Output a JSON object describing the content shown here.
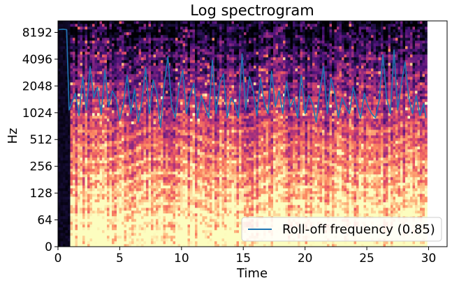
{
  "chart_data": {
    "type": "heatmap",
    "title": "Log spectrogram",
    "xlabel": "Time",
    "ylabel": "Hz",
    "xlim": [
      0,
      31.5
    ],
    "y_scale": "symlog",
    "y_range_hz": [
      0,
      11025
    ],
    "x_ticks": [
      0,
      5,
      10,
      15,
      20,
      25,
      30
    ],
    "x_tick_labels": [
      "0",
      "5",
      "10",
      "15",
      "20",
      "25",
      "30"
    ],
    "y_tick_labels": [
      "0",
      "64",
      "128",
      "256",
      "512",
      "1024",
      "2048",
      "4096",
      "8192"
    ],
    "data_end_time": 29.8,
    "colormap": "magma",
    "legend": {
      "placement": "lower-right",
      "entries": [
        {
          "label": "Roll-off frequency (0.85)",
          "color": "#1f77b4"
        }
      ]
    },
    "series": [
      {
        "name": "Roll-off frequency (0.85)",
        "color": "#1f77b4",
        "x": [
          0.05,
          0.4,
          0.7,
          0.9,
          1.1,
          1.4,
          1.7,
          2.0,
          2.3,
          2.6,
          2.9,
          3.2,
          3.5,
          3.8,
          4.1,
          4.4,
          4.7,
          5.0,
          5.3,
          5.6,
          5.9,
          6.2,
          6.5,
          6.8,
          7.1,
          7.4,
          7.7,
          8.0,
          8.3,
          8.6,
          8.9,
          9.2,
          9.5,
          9.8,
          10.1,
          10.4,
          10.7,
          11.0,
          11.3,
          11.6,
          11.9,
          12.2,
          12.5,
          12.8,
          13.1,
          13.4,
          13.7,
          14.0,
          14.3,
          14.6,
          14.9,
          15.2,
          15.5,
          15.8,
          16.1,
          16.4,
          16.7,
          17.0,
          17.3,
          17.6,
          17.9,
          18.2,
          18.5,
          18.8,
          19.1,
          19.4,
          19.7,
          20.0,
          20.3,
          20.6,
          20.9,
          21.2,
          21.5,
          21.8,
          22.1,
          22.4,
          22.7,
          23.0,
          23.3,
          23.6,
          23.9,
          24.2,
          24.5,
          24.8,
          25.1,
          25.4,
          25.7,
          26.0,
          26.3,
          26.6,
          26.9,
          27.2,
          27.5,
          27.8,
          28.1,
          28.4,
          28.7,
          29.0,
          29.3,
          29.6,
          29.8
        ],
        "y": [
          8800,
          8900,
          8800,
          1100,
          1300,
          1700,
          950,
          2600,
          1100,
          3400,
          1500,
          2000,
          980,
          3100,
          1200,
          1800,
          1500,
          850,
          1300,
          2700,
          1000,
          1900,
          800,
          1400,
          3300,
          1000,
          2400,
          1700,
          700,
          2100,
          4400,
          1200,
          900,
          2000,
          3100,
          1000,
          1600,
          2200,
          900,
          1600,
          1200,
          900,
          4000,
          1000,
          2200,
          2800,
          900,
          1500,
          1300,
          900,
          4700,
          1100,
          2600,
          1800,
          950,
          2500,
          1300,
          1000,
          3000,
          1200,
          1800,
          1000,
          2300,
          1200,
          1500,
          900,
          2700,
          1000,
          1600,
          1300,
          800,
          1800,
          3400,
          1000,
          2500,
          1700,
          900,
          1500,
          1200,
          1000,
          2000,
          1300,
          900,
          1700,
          1200,
          1000,
          900,
          1400,
          4600,
          1500,
          1000,
          5200,
          1100,
          2200,
          3800,
          1500,
          1000,
          1600,
          950,
          1300,
          900
        ]
      }
    ]
  }
}
